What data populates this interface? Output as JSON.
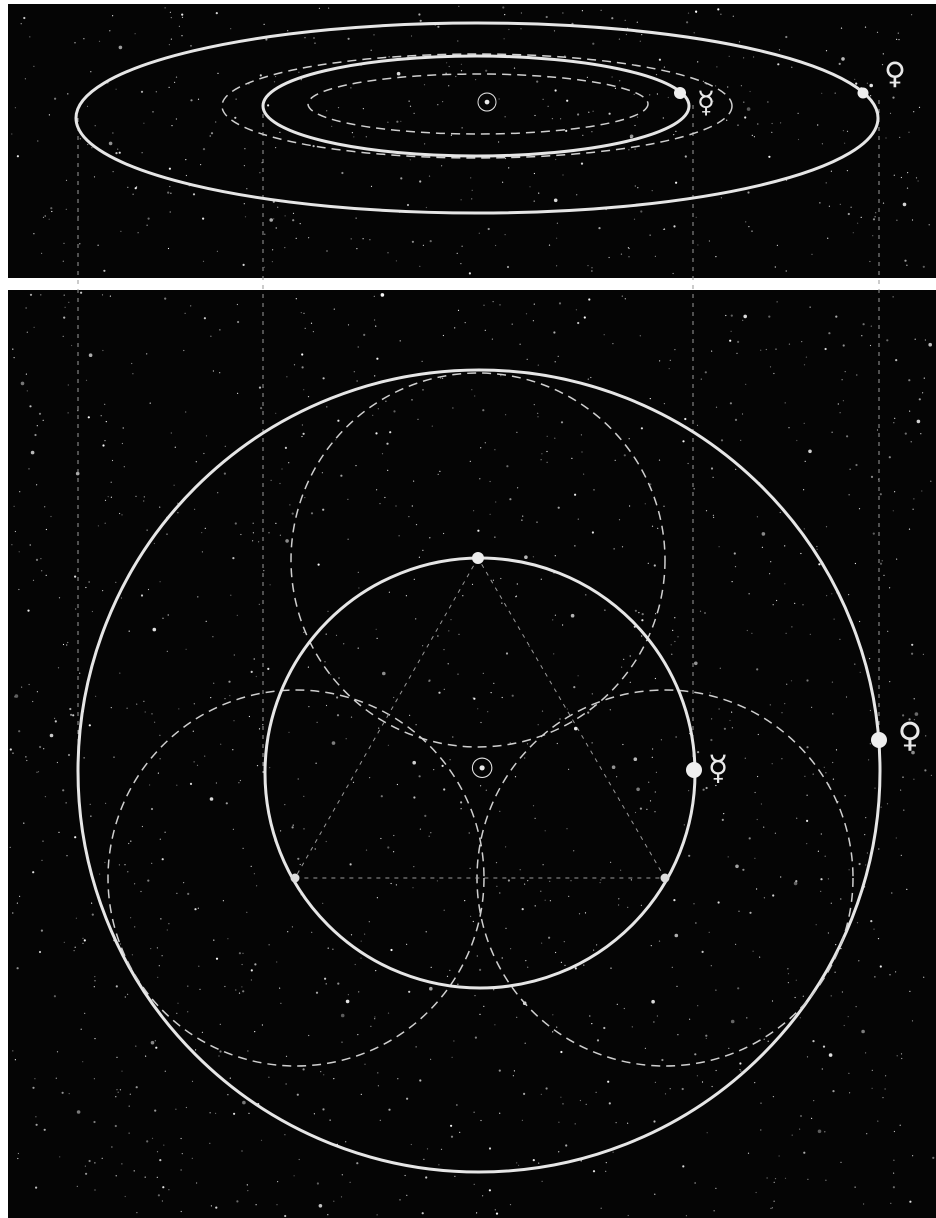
{
  "top_view": {
    "sun": "☉",
    "mercury": "☿",
    "venus": "♀"
  },
  "plan_view": {
    "sun": "☉",
    "mercury": "☿",
    "venus": "♀"
  }
}
